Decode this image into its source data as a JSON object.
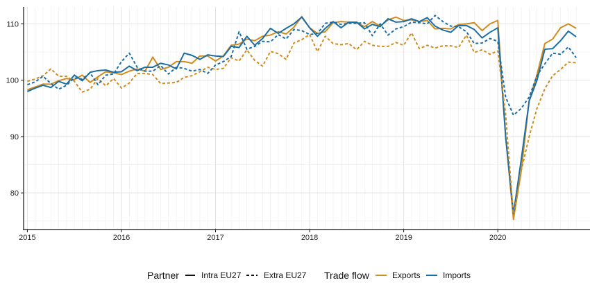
{
  "chart_data": {
    "type": "line",
    "title": "",
    "xlabel": "",
    "ylabel": "",
    "xlim": [
      2014.96,
      2020.98
    ],
    "ylim": [
      73.5,
      113.0
    ],
    "xticks": [
      2015,
      2016,
      2017,
      2018,
      2019,
      2020
    ],
    "xtick_labels": [
      "2015",
      "2016",
      "2017",
      "2018",
      "2019",
      "2020"
    ],
    "yticks": [
      80,
      90,
      100,
      110
    ],
    "ytick_labels": [
      "80",
      "90",
      "100",
      "110"
    ],
    "grid": true,
    "legend_position": "bottom",
    "legend": {
      "partner_title": "Partner",
      "partner_items": [
        {
          "label": "Intra EU27",
          "dash": "solid"
        },
        {
          "label": "Extra EU27",
          "dash": "dashed"
        }
      ],
      "flow_title": "Trade flow",
      "flow_items": [
        {
          "label": "Exports",
          "color": "#d08b1c"
        },
        {
          "label": "Imports",
          "color": "#1b6ea5"
        }
      ]
    },
    "series": [
      {
        "name": "Exports",
        "partner": "Intra EU27",
        "color": "#d08b1c",
        "dash": "solid",
        "values": [
          98.3,
          98.8,
          99.3,
          99.3,
          99.9,
          100.3,
          100.1,
          100.9,
          99.6,
          100.6,
          101.5,
          101.3,
          101.0,
          101.6,
          102.0,
          101.6,
          104.1,
          101.9,
          102.3,
          103.3,
          103.3,
          103.0,
          104.3,
          104.3,
          103.4,
          104.3,
          106.2,
          106.4,
          107.3,
          107.0,
          107.8,
          108.0,
          108.6,
          108.2,
          109.4,
          111.3,
          109.3,
          108.3,
          108.6,
          110.2,
          110.4,
          110.3,
          110.2,
          109.5,
          110.4,
          109.6,
          110.7,
          111.2,
          110.6,
          110.7,
          110.4,
          110.6,
          109.1,
          109.2,
          109.1,
          109.9,
          110.0,
          110.2,
          108.8,
          110.0,
          110.6,
          90.0,
          75.3,
          84.0,
          96.3,
          101.0,
          106.5,
          107.3,
          109.3,
          110.0,
          109.2
        ]
      },
      {
        "name": "Imports",
        "partner": "Intra EU27",
        "color": "#1b6ea5",
        "dash": "solid",
        "values": [
          98.0,
          98.6,
          99.1,
          98.7,
          99.8,
          99.3,
          100.9,
          99.9,
          101.4,
          101.7,
          101.8,
          101.4,
          101.5,
          102.5,
          101.7,
          102.3,
          102.3,
          103.0,
          102.7,
          102.0,
          104.8,
          104.4,
          103.7,
          104.5,
          104.3,
          104.2,
          106.0,
          105.8,
          107.8,
          106.2,
          107.4,
          109.2,
          108.3,
          109.2,
          110.0,
          111.2,
          109.3,
          107.8,
          109.2,
          110.4,
          109.3,
          110.3,
          110.3,
          109.1,
          109.9,
          109.5,
          110.9,
          110.3,
          110.4,
          110.9,
          110.4,
          111.1,
          109.6,
          108.9,
          108.5,
          109.7,
          109.7,
          109.0,
          107.5,
          108.5,
          109.3,
          90.0,
          76.3,
          86.0,
          96.3,
          100.0,
          105.5,
          105.6,
          107.0,
          108.7,
          107.7
        ]
      },
      {
        "name": "Exports",
        "partner": "Extra EU27",
        "color": "#d08b1c",
        "dash": "dashed",
        "values": [
          99.8,
          100.2,
          100.8,
          102.0,
          100.7,
          100.7,
          99.8,
          97.9,
          98.4,
          100.3,
          99.0,
          100.3,
          98.6,
          99.5,
          101.2,
          101.2,
          101.0,
          99.4,
          99.5,
          99.6,
          100.5,
          100.8,
          101.5,
          102.3,
          101.9,
          102.1,
          104.0,
          103.4,
          105.4,
          103.5,
          102.5,
          105.1,
          104.7,
          103.7,
          106.6,
          107.2,
          108.1,
          105.1,
          107.8,
          106.5,
          106.3,
          106.5,
          105.4,
          106.9,
          106.2,
          106.0,
          106.0,
          106.7,
          106.2,
          108.4,
          105.6,
          106.2,
          105.7,
          106.1,
          106.1,
          105.8,
          108.0,
          104.9,
          105.4,
          104.6,
          105.2,
          94.0,
          75.8,
          84.0,
          90.0,
          95.0,
          98.5,
          100.8,
          101.9,
          103.2,
          103.1
        ]
      },
      {
        "name": "Imports",
        "partner": "Extra EU27",
        "color": "#1b6ea5",
        "dash": "dashed",
        "values": [
          99.2,
          99.7,
          100.7,
          99.4,
          98.4,
          99.1,
          100.4,
          100.2,
          101.3,
          99.2,
          100.9,
          101.1,
          103.3,
          104.8,
          102.3,
          101.6,
          101.6,
          102.6,
          101.1,
          102.3,
          102.1,
          101.6,
          101.9,
          101.2,
          102.7,
          103.3,
          104.2,
          108.6,
          105.5,
          106.0,
          106.9,
          106.8,
          108.1,
          107.3,
          109.0,
          108.8,
          108.1,
          108.3,
          110.1,
          110.3,
          109.9,
          110.1,
          110.1,
          110.2,
          107.9,
          110.0,
          108.0,
          109.1,
          109.5,
          110.3,
          110.2,
          110.0,
          111.5,
          110.4,
          109.6,
          109.5,
          108.6,
          106.5,
          106.6,
          107.4,
          106.9,
          97.0,
          93.8,
          95.0,
          97.0,
          100.8,
          102.9,
          104.8,
          104.6,
          105.9,
          104.0
        ]
      }
    ]
  }
}
